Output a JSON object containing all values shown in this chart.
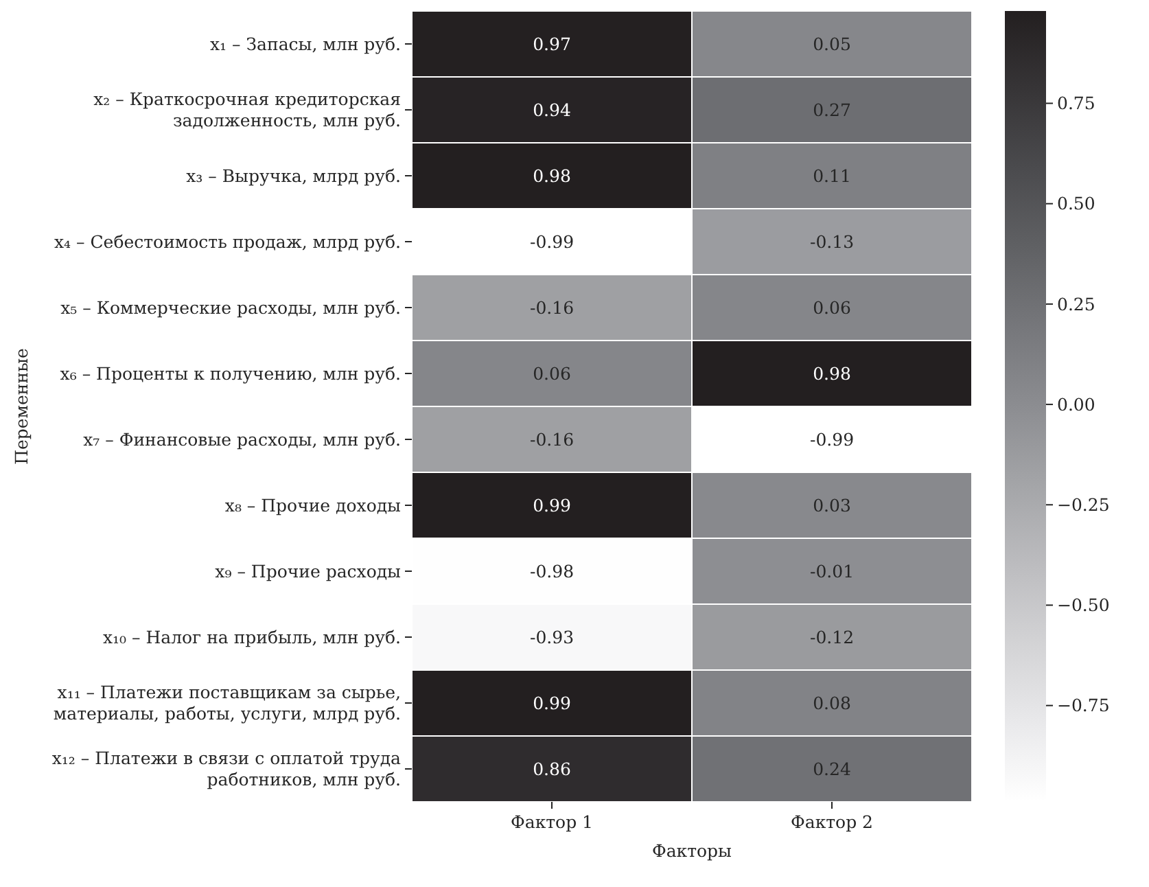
{
  "chart_data": {
    "type": "heatmap",
    "xlabel": "Факторы",
    "ylabel": "Переменные",
    "categories": [
      "Фактор 1",
      "Фактор 2"
    ],
    "y_categories": [
      "x₁ – Запасы, млн руб.",
      "x₂ – Краткосрочная кредиторская задолженность, млн руб.",
      "x₃ – Выручка, млрд руб.",
      "x₄ – Себестоимость продаж, млрд руб.",
      "x₅ – Коммерческие расходы, млн руб.",
      "x₆ – Проценты к получению, млн руб.",
      "x₇ – Финансовые расходы, млн руб.",
      "x₈ – Прочие доходы",
      "x₉ – Прочие расходы",
      "x₁₀ – Налог на прибыль, млн руб.",
      "x₁₁ – Платежи поставщикам за сырье, материалы, работы, услуги, млрд руб.",
      "x₁₂ – Платежи в связи с оплатой труда работников, млн руб."
    ],
    "cells": [
      [
        0.97,
        0.05
      ],
      [
        0.94,
        0.27
      ],
      [
        0.98,
        0.11
      ],
      [
        -0.99,
        -0.13
      ],
      [
        -0.16,
        0.06
      ],
      [
        0.06,
        0.98
      ],
      [
        -0.16,
        -0.99
      ],
      [
        0.99,
        0.03
      ],
      [
        -0.98,
        -0.01
      ],
      [
        -0.93,
        -0.12
      ],
      [
        0.99,
        0.08
      ],
      [
        0.86,
        0.24
      ]
    ],
    "data_labels": true,
    "clim": [
      -0.99,
      0.98
    ],
    "cticks": [
      {
        "value": -0.75,
        "label": "−0.75"
      },
      {
        "value": -0.5,
        "label": "−0.50"
      },
      {
        "value": -0.25,
        "label": "−0.25"
      },
      {
        "value": 0,
        "label": "0.00"
      },
      {
        "value": 0.25,
        "label": "0.25"
      },
      {
        "value": 0.5,
        "label": "0.50"
      },
      {
        "value": 0.75,
        "label": "0.75"
      }
    ]
  }
}
